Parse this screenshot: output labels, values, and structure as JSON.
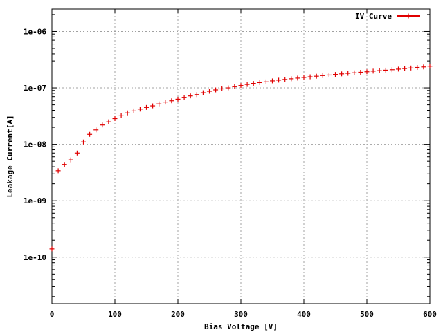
{
  "chart_data": {
    "type": "scatter",
    "xlabel": "Bias Voltage [V]",
    "ylabel": "Leakage Current[A]",
    "xlim": [
      0,
      600
    ],
    "ylim": [
      1.5e-11,
      2.5e-06
    ],
    "yscale": "log",
    "grid": true,
    "legend_position": "top-right",
    "x_ticks": [
      0,
      100,
      200,
      300,
      400,
      500,
      600
    ],
    "x_tick_labels": [
      "0",
      "100",
      "200",
      "300",
      "400",
      "500",
      "600"
    ],
    "y_ticks": [
      1e-10,
      1e-09,
      1e-08,
      1e-07,
      1e-06
    ],
    "y_tick_labels": [
      "1e-10",
      "1e-09",
      "1e-08",
      "1e-07",
      "1e-06"
    ],
    "series": [
      {
        "name": "IV Curve",
        "color": "#e00000",
        "marker": "plus",
        "x": [
          0,
          10,
          20,
          30,
          40,
          50,
          60,
          70,
          80,
          90,
          100,
          110,
          120,
          130,
          140,
          150,
          160,
          170,
          180,
          190,
          200,
          210,
          220,
          230,
          240,
          250,
          260,
          270,
          280,
          290,
          300,
          310,
          320,
          330,
          340,
          350,
          360,
          370,
          380,
          390,
          400,
          410,
          420,
          430,
          440,
          450,
          460,
          470,
          480,
          490,
          500,
          510,
          520,
          530,
          540,
          550,
          560,
          570,
          580,
          590,
          600
        ],
        "y": [
          1.4e-10,
          3.4e-09,
          4.4e-09,
          5.3e-09,
          7e-09,
          1.1e-08,
          1.5e-08,
          1.8e-08,
          2.2e-08,
          2.5e-08,
          2.85e-08,
          3.2e-08,
          3.6e-08,
          3.9e-08,
          4.2e-08,
          4.5e-08,
          4.8e-08,
          5.2e-08,
          5.6e-08,
          5.9e-08,
          6.3e-08,
          6.8e-08,
          7.2e-08,
          7.6e-08,
          8.2e-08,
          8.7e-08,
          9.2e-08,
          9.6e-08,
          1e-07,
          1.05e-07,
          1.1e-07,
          1.15e-07,
          1.2e-07,
          1.24e-07,
          1.28e-07,
          1.33e-07,
          1.37e-07,
          1.41e-07,
          1.45e-07,
          1.49e-07,
          1.53e-07,
          1.57e-07,
          1.61e-07,
          1.65e-07,
          1.69e-07,
          1.73e-07,
          1.77e-07,
          1.81e-07,
          1.85e-07,
          1.89e-07,
          1.93e-07,
          1.98e-07,
          2.02e-07,
          2.06e-07,
          2.1e-07,
          2.15e-07,
          2.2e-07,
          2.25e-07,
          2.3e-07,
          2.35e-07,
          2.42e-07
        ]
      }
    ]
  }
}
